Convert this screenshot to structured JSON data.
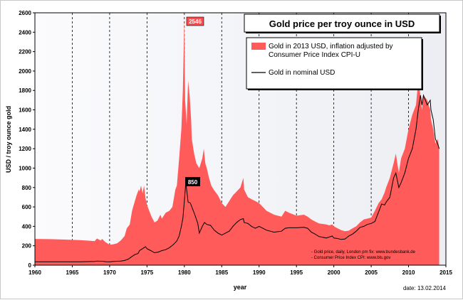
{
  "chart_data": {
    "type": "area",
    "title": "Gold price per troy ounce in USD",
    "xlabel": "year",
    "ylabel": "USD / troy ounce gold",
    "xlim": [
      1960,
      2015
    ],
    "ylim": [
      0,
      2600
    ],
    "x_ticks": [
      "1960",
      "1965",
      "1970",
      "1975",
      "1980",
      "1985",
      "1990",
      "1995",
      "2000",
      "2005",
      "2010",
      "2015"
    ],
    "y_ticks": [
      "0",
      "200",
      "400",
      "600",
      "800",
      "1000",
      "1200",
      "1400",
      "1600",
      "1800",
      "2000",
      "2200",
      "2400",
      "2600"
    ],
    "grid": "vertical dashed",
    "series": [
      {
        "name": "Gold in 2013 USD, inflation adjusted by Consumer Price Index CPI-U",
        "style": "filled-area",
        "color": "#ff5b5b",
        "x": [
          1960,
          1962,
          1964,
          1966,
          1968,
          1968.3,
          1968.8,
          1969,
          1969.4,
          1969.8,
          1970,
          1970.5,
          1971,
          1971.5,
          1972,
          1972.3,
          1972.7,
          1973,
          1973.3,
          1973.6,
          1973.9,
          1974,
          1974.2,
          1974.4,
          1974.6,
          1974.8,
          1975,
          1975.3,
          1975.6,
          1976,
          1976.4,
          1976.8,
          1977,
          1977.5,
          1978,
          1978.4,
          1978.8,
          1979,
          1979.3,
          1979.6,
          1979.8,
          1980,
          1980.1,
          1980.3,
          1980.5,
          1980.7,
          1980.9,
          1981,
          1981.3,
          1981.6,
          1982,
          1982.4,
          1982.6,
          1982.8,
          1983,
          1983.3,
          1983.6,
          1984,
          1984.5,
          1985,
          1985.5,
          1986,
          1986.5,
          1987,
          1987.5,
          1987.9,
          1988,
          1988.5,
          1989,
          1989.5,
          1990,
          1990.5,
          1991,
          1992,
          1993,
          1993.5,
          1994,
          1995,
          1996,
          1996.5,
          1997,
          1997.5,
          1998,
          1999,
          1999.4,
          1999.8,
          2000,
          2000.5,
          2001,
          2001.5,
          2002,
          2002.5,
          2003,
          2003.5,
          2004,
          2005,
          2005.5,
          2006,
          2006.4,
          2006.8,
          2007,
          2007.5,
          2008,
          2008.3,
          2008.7,
          2009,
          2009.5,
          2010,
          2010.5,
          2011,
          2011.3,
          2011.6,
          2011.8,
          2012,
          2012.5,
          2012.9,
          2013,
          2013.3,
          2013.6,
          2013.9,
          2014.1
        ],
        "values": [
          270,
          268,
          264,
          258,
          248,
          275,
          255,
          270,
          240,
          220,
          210,
          215,
          225,
          255,
          300,
          380,
          420,
          560,
          640,
          720,
          780,
          760,
          820,
          740,
          820,
          690,
          620,
          560,
          500,
          440,
          460,
          520,
          480,
          540,
          560,
          600,
          780,
          820,
          1100,
          1400,
          1800,
          2546,
          1700,
          1450,
          1900,
          1750,
          1500,
          1300,
          1150,
          1050,
          1000,
          1100,
          1200,
          1050,
          1000,
          900,
          820,
          770,
          720,
          640,
          600,
          660,
          720,
          760,
          800,
          900,
          780,
          700,
          680,
          660,
          640,
          600,
          560,
          520,
          500,
          560,
          540,
          510,
          520,
          500,
          470,
          450,
          430,
          420,
          410,
          420,
          400,
          380,
          360,
          350,
          355,
          380,
          400,
          440,
          470,
          490,
          560,
          640,
          680,
          750,
          800,
          900,
          1050,
          1150,
          950,
          1100,
          1200,
          1400,
          1550,
          1650,
          1900,
          1750,
          1600,
          1750,
          1700,
          1600,
          1500,
          1400,
          1250,
          1300,
          1200
        ],
        "annotation": {
          "x": 1980,
          "value": 2546,
          "label": "2546"
        }
      },
      {
        "name": "Gold in nominal USD",
        "style": "line",
        "color": "#000000",
        "x": [
          1960,
          1962,
          1964,
          1966,
          1968,
          1968.3,
          1968.8,
          1969,
          1969.5,
          1970,
          1970.5,
          1971,
          1971.5,
          1972,
          1972.5,
          1973,
          1973.4,
          1973.8,
          1974,
          1974.4,
          1974.8,
          1975,
          1975.5,
          1976,
          1976.5,
          1977,
          1977.5,
          1978,
          1978.5,
          1979,
          1979.3,
          1979.6,
          1979.8,
          1980,
          1980.2,
          1980.5,
          1980.8,
          1981,
          1981.4,
          1981.8,
          1982,
          1982.4,
          1982.7,
          1983,
          1983.5,
          1984,
          1984.5,
          1985,
          1985.5,
          1986,
          1986.5,
          1987,
          1987.5,
          1987.9,
          1988,
          1988.5,
          1989,
          1989.5,
          1990,
          1990.5,
          1991,
          1992,
          1993,
          1993.5,
          1994,
          1995,
          1996,
          1996.5,
          1997,
          1997.5,
          1998,
          1999,
          1999.4,
          1999.8,
          2000,
          2000.5,
          2001,
          2001.5,
          2002,
          2002.5,
          2003,
          2003.5,
          2004,
          2004.5,
          2005,
          2005.5,
          2006,
          2006.4,
          2006.8,
          2007,
          2007.5,
          2008,
          2008.3,
          2008.7,
          2009,
          2009.5,
          2010,
          2010.5,
          2011,
          2011.3,
          2011.6,
          2011.8,
          2012,
          2012.5,
          2012.9,
          2013,
          2013.3,
          2013.6,
          2013.9,
          2014.1
        ],
        "values": [
          35,
          35,
          35,
          35,
          38,
          42,
          40,
          41,
          36,
          35,
          38,
          40,
          42,
          48,
          62,
          90,
          110,
          120,
          150,
          170,
          190,
          170,
          150,
          128,
          135,
          150,
          160,
          180,
          210,
          250,
          300,
          400,
          480,
          660,
          850,
          650,
          640,
          600,
          520,
          430,
          330,
          400,
          440,
          420,
          410,
          360,
          330,
          310,
          330,
          350,
          400,
          440,
          470,
          480,
          440,
          430,
          400,
          380,
          400,
          380,
          360,
          340,
          350,
          380,
          385,
          385,
          390,
          380,
          340,
          320,
          295,
          280,
          290,
          300,
          280,
          275,
          265,
          270,
          300,
          320,
          350,
          390,
          400,
          420,
          430,
          450,
          550,
          630,
          620,
          650,
          700,
          900,
          950,
          800,
          850,
          950,
          1100,
          1200,
          1400,
          1600,
          1750,
          1650,
          1750,
          1650,
          1700,
          1600,
          1500,
          1300,
          1250,
          1200
        ],
        "annotation": {
          "x": 1980,
          "value": 850,
          "label": "850"
        }
      }
    ],
    "legend": {
      "placement": "top-right",
      "entries": [
        "Gold in 2013 USD, inflation adjusted by Consumer Price Index CPI-U",
        "Gold in nominal USD"
      ]
    },
    "sources": [
      "- Gold price, daily, London pm fix: www.bundesbank.de",
      "- Consumer Price Index CPI: www.bls.gov"
    ],
    "date_label": "date: 13.02.2014"
  }
}
